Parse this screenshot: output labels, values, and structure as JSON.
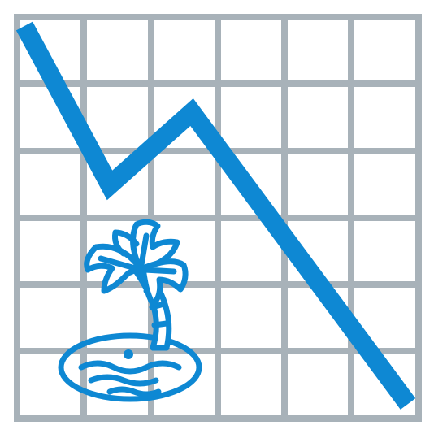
{
  "illustration": {
    "subject": "declining-trend-chart-with-desert-island-icon",
    "grid_columns": 6,
    "grid_rows": 6
  },
  "colors": {
    "background": "#ffffff",
    "grid": "#a8b2b9",
    "accent": "#0e88d3"
  }
}
